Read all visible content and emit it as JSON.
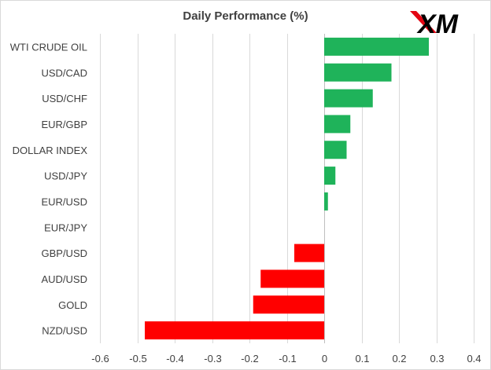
{
  "logo": {
    "text": "XM",
    "color": "#000000",
    "accent_color": "#e30613"
  },
  "chart_data": {
    "type": "bar",
    "orientation": "horizontal",
    "title": "Daily Performance (%)",
    "categories": [
      "WTI CRUDE OIL",
      "USD/CAD",
      "USD/CHF",
      "EUR/GBP",
      "DOLLAR INDEX",
      "USD/JPY",
      "EUR/USD",
      "EUR/JPY",
      "GBP/USD",
      "AUD/USD",
      "GOLD",
      "NZD/USD"
    ],
    "values": [
      0.28,
      0.18,
      0.13,
      0.07,
      0.06,
      0.03,
      0.01,
      0.0,
      -0.08,
      -0.17,
      -0.19,
      -0.48
    ],
    "xlim": [
      -0.6,
      0.4
    ],
    "xticks": [
      -0.6,
      -0.5,
      -0.4,
      -0.3,
      -0.2,
      -0.1,
      0,
      0.1,
      0.2,
      0.3,
      0.4
    ],
    "xtick_labels": [
      "-0.6",
      "-0.5",
      "-0.4",
      "-0.3",
      "-0.2",
      "-0.1",
      "0",
      "0.1",
      "0.2",
      "0.3",
      "0.4"
    ],
    "grid": true,
    "positive_color": "#1fb35a",
    "negative_color": "#ff0000"
  }
}
